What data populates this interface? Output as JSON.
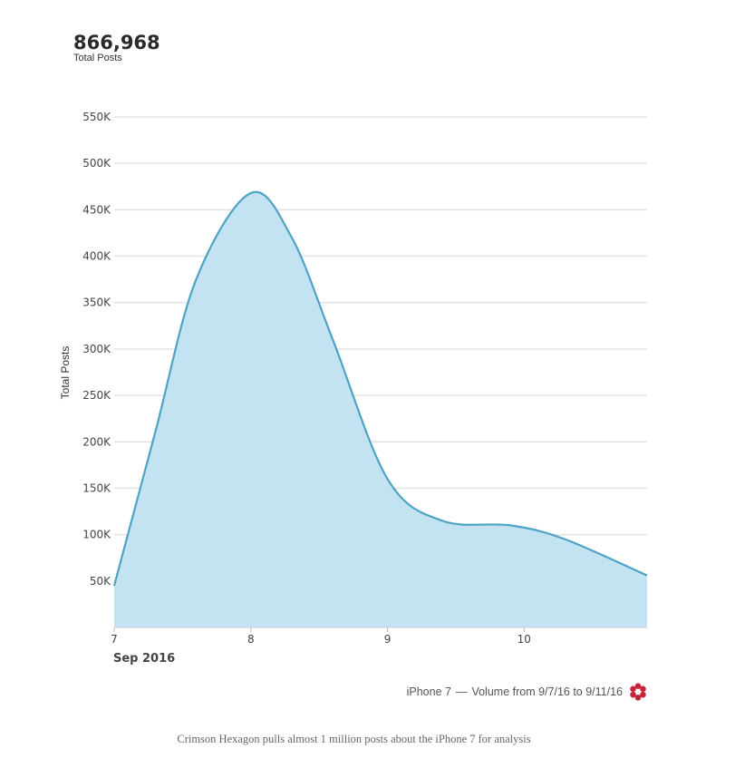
{
  "summary": {
    "total_value": "866,968",
    "total_label": "Total Posts"
  },
  "chart_data": {
    "type": "area",
    "title": "",
    "xlabel": "",
    "ylabel": "Total Posts",
    "x_period_label": "Sep 2016",
    "x_ticks": [
      {
        "value": 7,
        "label": "7"
      },
      {
        "value": 8,
        "label": "8"
      },
      {
        "value": 9,
        "label": "9"
      },
      {
        "value": 10,
        "label": "10"
      }
    ],
    "xlim": [
      7,
      10.9
    ],
    "ylim": [
      0,
      550000
    ],
    "y_ticks": [
      {
        "value": 50000,
        "label": "50K"
      },
      {
        "value": 100000,
        "label": "100K"
      },
      {
        "value": 150000,
        "label": "150K"
      },
      {
        "value": 200000,
        "label": "200K"
      },
      {
        "value": 250000,
        "label": "250K"
      },
      {
        "value": 300000,
        "label": "300K"
      },
      {
        "value": 350000,
        "label": "350K"
      },
      {
        "value": 400000,
        "label": "400K"
      },
      {
        "value": 450000,
        "label": "450K"
      },
      {
        "value": 500000,
        "label": "500K"
      },
      {
        "value": 550000,
        "label": "550K"
      }
    ],
    "grid": true,
    "series": [
      {
        "color": "#4ea3c4",
        "fill": "#c3e3f3",
        "points": [
          {
            "x": 7.0,
            "y": 45000
          },
          {
            "x": 7.3,
            "y": 210000
          },
          {
            "x": 7.6,
            "y": 375000
          },
          {
            "x": 8.0,
            "y": 468000
          },
          {
            "x": 8.3,
            "y": 420000
          },
          {
            "x": 8.6,
            "y": 310000
          },
          {
            "x": 9.0,
            "y": 160000
          },
          {
            "x": 9.4,
            "y": 115000
          },
          {
            "x": 9.9,
            "y": 110000
          },
          {
            "x": 10.3,
            "y": 95000
          },
          {
            "x": 10.9,
            "y": 56000
          }
        ]
      }
    ]
  },
  "footer": {
    "series_name": "iPhone 7",
    "dash": "—",
    "range_text": "Volume from 9/7/16 to 9/11/16",
    "logo_icon": "crimson-hexagon-logo",
    "logo_color": "#c4233a"
  },
  "caption": "Crimson Hexagon pulls almost 1 million posts about the iPhone 7 for analysis"
}
